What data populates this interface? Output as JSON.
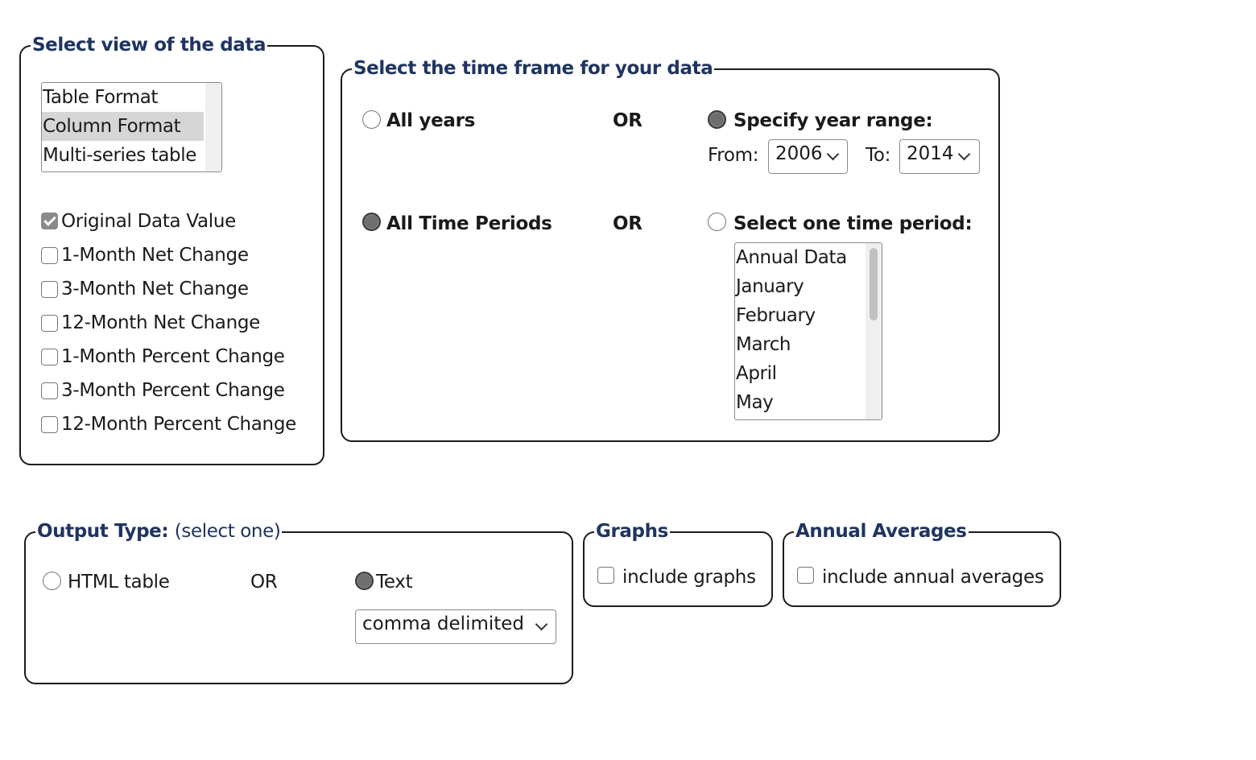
{
  "view": {
    "legend": "Select view of the data",
    "formats": [
      "Table Format",
      "Column Format",
      "Multi-series table"
    ],
    "selected_format": "Column Format",
    "options": [
      {
        "label": "Original Data Value",
        "checked": true
      },
      {
        "label": "1-Month Net Change",
        "checked": false
      },
      {
        "label": "3-Month Net Change",
        "checked": false
      },
      {
        "label": "12-Month Net Change",
        "checked": false
      },
      {
        "label": "1-Month Percent Change",
        "checked": false
      },
      {
        "label": "3-Month Percent Change",
        "checked": false
      },
      {
        "label": "12-Month Percent Change",
        "checked": false
      }
    ]
  },
  "timeframe": {
    "legend": "Select the time frame for your data",
    "all_years": {
      "label": "All years",
      "selected": false
    },
    "or1": "OR",
    "year_range": {
      "label": "Specify year range:",
      "selected": true,
      "from_label": "From:",
      "from_value": "2006",
      "to_label": "To:",
      "to_value": "2014"
    },
    "all_periods": {
      "label": "All Time Periods",
      "selected": true
    },
    "or2": "OR",
    "one_period": {
      "label": "Select one time period:",
      "selected": false
    },
    "periods": [
      "Annual Data",
      "January",
      "February",
      "March",
      "April",
      "May"
    ]
  },
  "output": {
    "legend_bold": "Output Type:",
    "legend_note": "(select one)",
    "html_table": {
      "label": "HTML table",
      "selected": false
    },
    "or": "OR",
    "text": {
      "label": "Text",
      "selected": true
    },
    "text_format": "comma delimited"
  },
  "graphs": {
    "legend": "Graphs",
    "include_label": "include graphs",
    "checked": false
  },
  "averages": {
    "legend": "Annual Averages",
    "include_label": "include annual averages",
    "checked": false
  },
  "colors": {
    "legend": "#1f3461",
    "border": "#1c1c1c",
    "selection": "#d6d6d6"
  }
}
